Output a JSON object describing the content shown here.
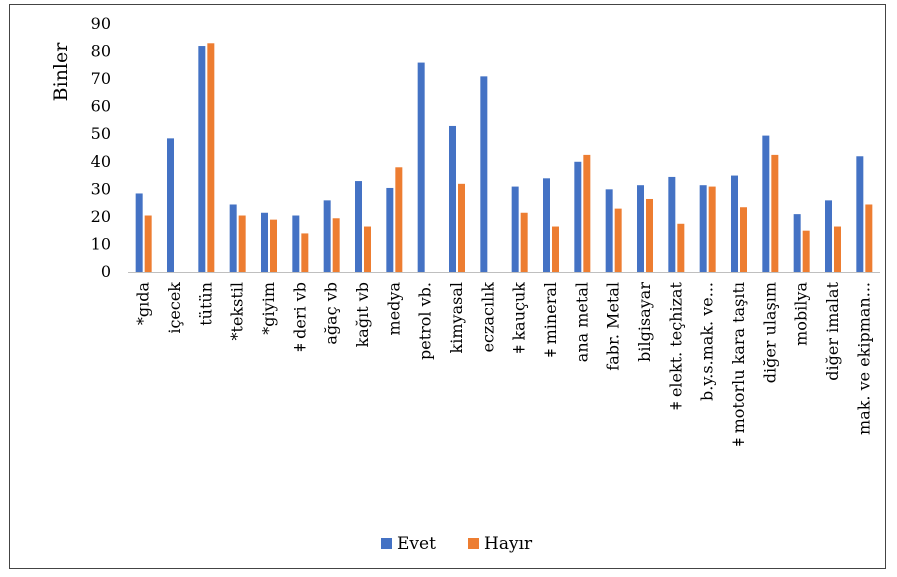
{
  "chart_data": {
    "type": "bar",
    "ylabel": "Binler",
    "ylim": [
      0,
      90
    ],
    "yticks": [
      "0",
      "10",
      "20",
      "30",
      "40",
      "50",
      "60",
      "70",
      "80",
      "90"
    ],
    "grid": false,
    "legend_position": "bottom",
    "categories": [
      "*gıda",
      "içecek",
      "tütün",
      "*tekstil",
      "*giyim",
      "ǂ deri vb",
      "ağaç vb",
      "kağıt vb",
      "medya",
      "petrol vb.",
      "kimyasal",
      "eczacılık",
      "ǂ kauçuk",
      "ǂ mineral",
      "ana metal",
      "fabr. Metal",
      "bilgisayar",
      "ǂ elekt. teçhizat",
      "b.y.s.mak. ve...",
      "ǂ motorlu kara taşıtı",
      "diğer ulaşım",
      "mobilya",
      "diğer imalat",
      "mak. ve ekipman..."
    ],
    "series": [
      {
        "name": "Evet",
        "color": "#4472C4",
        "values": [
          28.5,
          48.5,
          82,
          24.5,
          21.5,
          20.5,
          26,
          33,
          30.5,
          76,
          53,
          71,
          31,
          34,
          40,
          30,
          31.5,
          34.5,
          31.5,
          35,
          49.5,
          21,
          26,
          42
        ]
      },
      {
        "name": "Hayır",
        "color": "#ED7D31",
        "values": [
          20.5,
          null,
          83,
          20.5,
          19,
          14,
          19.5,
          16.5,
          38,
          null,
          32,
          null,
          21.5,
          16.5,
          42.5,
          23,
          26.5,
          17.5,
          31,
          23.5,
          42.5,
          15,
          16.5,
          24.5
        ]
      }
    ]
  }
}
